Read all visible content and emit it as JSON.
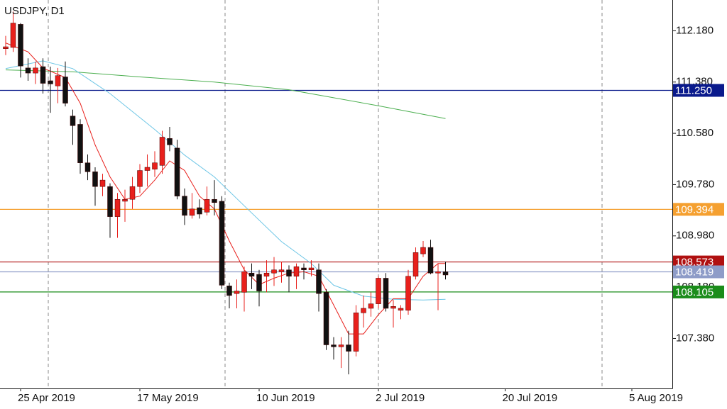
{
  "chart_data": {
    "type": "candlestick",
    "title": "USDJPY, D1",
    "categories": [
      null,
      null,
      "25 Apr 2019",
      null,
      null,
      null,
      null,
      null,
      null,
      null,
      null,
      null,
      null,
      null,
      null,
      null,
      null,
      null,
      "17 May 2019",
      null,
      null,
      null,
      null,
      null,
      null,
      null,
      null,
      null,
      null,
      null,
      null,
      null,
      null,
      null,
      "10 Jun 2019",
      null,
      null,
      null,
      null,
      null,
      null,
      null,
      null,
      null,
      null,
      null,
      null,
      null,
      null,
      null,
      "2 Jul 2019",
      null,
      null,
      null,
      null,
      null,
      null,
      null,
      null,
      null,
      null,
      null,
      null,
      null,
      null,
      null,
      null,
      "20 Jul 2019",
      null,
      null,
      null,
      null,
      null,
      null,
      null,
      null,
      null,
      null,
      null,
      null,
      null,
      null,
      null,
      null,
      "5 Aug 2019",
      null,
      null,
      null,
      null,
      null
    ],
    "open": [
      111.9,
      111.92,
      112.28,
      111.6,
      111.52,
      111.62,
      111.4,
      111.32,
      111.46,
      110.85,
      110.72,
      110.12,
      109.98,
      109.75,
      109.75,
      109.28,
      109.52,
      109.55,
      109.75,
      110.0,
      110.02,
      110.08,
      110.5,
      110.35,
      109.6,
      109.3,
      109.42,
      109.35,
      109.55,
      109.52,
      108.2,
      108.08,
      108.1,
      108.4,
      108.38,
      108.35,
      108.4,
      108.42,
      108.45,
      108.35,
      108.48,
      108.45,
      108.45,
      108.1,
      107.28,
      107.25,
      107.28,
      107.18,
      107.78,
      107.85,
      107.92,
      108.32,
      107.85,
      107.82,
      107.82,
      108.35,
      108.7,
      108.8,
      108.4,
      108.42,
      null,
      null,
      null,
      null,
      null,
      null,
      null,
      null,
      null,
      null,
      null,
      null,
      null,
      null,
      null,
      null,
      null,
      null,
      null,
      null,
      null,
      null,
      null,
      null,
      null,
      null,
      null,
      null,
      null,
      null
    ],
    "high": [
      112.1,
      112.48,
      112.3,
      111.75,
      111.7,
      111.75,
      111.62,
      111.6,
      111.7,
      110.95,
      110.8,
      110.25,
      110.05,
      109.95,
      109.8,
      109.65,
      109.7,
      109.9,
      110.1,
      110.25,
      110.3,
      110.62,
      110.68,
      110.48,
      109.72,
      109.65,
      109.55,
      109.75,
      109.85,
      109.6,
      108.25,
      108.3,
      108.5,
      108.55,
      108.45,
      108.6,
      108.65,
      108.58,
      108.52,
      108.55,
      108.55,
      108.6,
      108.55,
      108.15,
      107.4,
      107.4,
      107.5,
      107.9,
      108.05,
      108.1,
      108.35,
      108.4,
      107.98,
      107.9,
      108.45,
      108.8,
      108.9,
      108.92,
      108.55,
      108.58,
      null,
      null,
      null,
      null,
      null,
      null,
      null,
      null,
      null,
      null,
      null,
      null,
      null,
      null,
      null,
      null,
      null,
      null,
      null,
      null,
      null,
      null,
      null,
      null,
      null,
      null,
      null,
      null,
      null,
      null
    ],
    "low": [
      111.8,
      111.85,
      111.45,
      111.4,
      111.35,
      111.2,
      110.9,
      111.05,
      111.0,
      110.4,
      109.95,
      109.85,
      109.45,
      109.6,
      108.95,
      108.95,
      109.2,
      109.4,
      109.65,
      109.75,
      109.9,
      109.95,
      110.3,
      109.55,
      109.15,
      109.25,
      109.25,
      109.3,
      109.3,
      108.15,
      107.85,
      107.85,
      107.8,
      108.15,
      107.88,
      108.1,
      108.2,
      108.25,
      108.1,
      108.15,
      108.3,
      108.35,
      107.8,
      107.2,
      107.05,
      106.92,
      106.82,
      107.1,
      107.55,
      107.72,
      107.85,
      107.8,
      107.55,
      107.68,
      107.75,
      108.3,
      108.65,
      108.38,
      107.82,
      108.3,
      null,
      null,
      null,
      null,
      null,
      null,
      null,
      null,
      null,
      null,
      null,
      null,
      null,
      null,
      null,
      null,
      null,
      null,
      null,
      null,
      null,
      null,
      null,
      null,
      null,
      null,
      null,
      null,
      null,
      null
    ],
    "close": [
      111.93,
      112.3,
      111.63,
      111.52,
      111.6,
      111.36,
      111.35,
      111.48,
      111.05,
      110.7,
      110.12,
      109.98,
      109.75,
      109.85,
      109.28,
      109.55,
      109.55,
      109.75,
      110.0,
      110.05,
      110.12,
      110.52,
      110.4,
      109.6,
      109.3,
      109.4,
      109.32,
      109.55,
      109.5,
      108.21,
      108.05,
      108.12,
      108.42,
      108.35,
      108.12,
      108.4,
      108.45,
      108.45,
      108.35,
      108.5,
      108.45,
      108.48,
      108.08,
      107.28,
      107.25,
      107.28,
      107.18,
      107.78,
      107.85,
      107.92,
      108.32,
      107.85,
      107.88,
      107.85,
      108.35,
      108.72,
      108.8,
      108.4,
      108.42,
      108.37,
      null,
      null,
      null,
      null,
      null,
      null,
      null,
      null,
      null,
      null,
      null,
      null,
      null,
      null,
      null,
      null,
      null,
      null,
      null,
      null,
      null,
      null,
      null,
      null,
      null,
      null,
      null,
      null,
      null,
      null
    ],
    "up_color": "#e8201c",
    "down_color": "#111111",
    "overlays": [
      {
        "color": "#4caf50",
        "x": [
          0,
          9,
          18,
          28,
          38,
          50,
          59
        ],
        "values": [
          111.57,
          111.54,
          111.46,
          111.38,
          111.26,
          111.01,
          110.81
        ]
      },
      {
        "color": "#6ec6e6",
        "x": [
          0,
          5,
          9,
          14,
          20,
          24,
          28,
          32,
          37,
          41,
          44,
          48,
          52,
          56,
          59
        ],
        "values": [
          111.59,
          111.71,
          111.59,
          111.2,
          110.64,
          110.24,
          109.9,
          109.45,
          108.89,
          108.55,
          108.21,
          108.04,
          107.99,
          107.98,
          107.99
        ]
      },
      {
        "color": "#e8201c",
        "x": [
          0,
          3,
          5,
          8,
          10,
          12,
          14,
          16,
          18,
          20,
          22,
          24,
          26,
          28,
          30,
          32,
          34,
          36,
          38,
          40,
          42,
          44,
          46,
          48,
          50,
          52,
          54,
          56,
          58,
          59
        ],
        "values": [
          111.99,
          111.85,
          111.6,
          111.45,
          111.05,
          110.4,
          109.9,
          109.55,
          109.6,
          109.85,
          110.15,
          110.0,
          109.6,
          109.4,
          108.9,
          108.45,
          108.22,
          108.32,
          108.4,
          108.42,
          108.35,
          107.9,
          107.45,
          107.45,
          107.75,
          108.0,
          108.0,
          108.35,
          108.55,
          108.55
        ]
      }
    ],
    "levels": [
      {
        "value": 111.25,
        "label": "111.250",
        "color": "#0a1a8c",
        "text_color": "#ffffff"
      },
      {
        "value": 109.394,
        "label": "109.394",
        "color": "#f5a030",
        "text_color": "#ffffff"
      },
      {
        "value": 108.573,
        "label": "108.573",
        "color": "#b01010",
        "text_color": "#ffffff"
      },
      {
        "value": 108.419,
        "label": "108.419",
        "color": "#8e9cc8",
        "text_color": "#ffffff"
      },
      {
        "value": 108.105,
        "label": "108.105",
        "color": "#1a8c1a",
        "text_color": "#ffffff"
      }
    ],
    "ylim": [
      106.6,
      112.66
    ],
    "yticks": [
      {
        "value": 112.18,
        "label": "112.180"
      },
      {
        "value": 111.38,
        "label": "111.380"
      },
      {
        "value": 110.58,
        "label": "110.580"
      },
      {
        "value": 109.78,
        "label": "109.780"
      },
      {
        "value": 108.98,
        "label": "108.980"
      },
      {
        "value": 108.18,
        "label": "108.180"
      },
      {
        "value": 107.38,
        "label": "107.380"
      }
    ]
  }
}
